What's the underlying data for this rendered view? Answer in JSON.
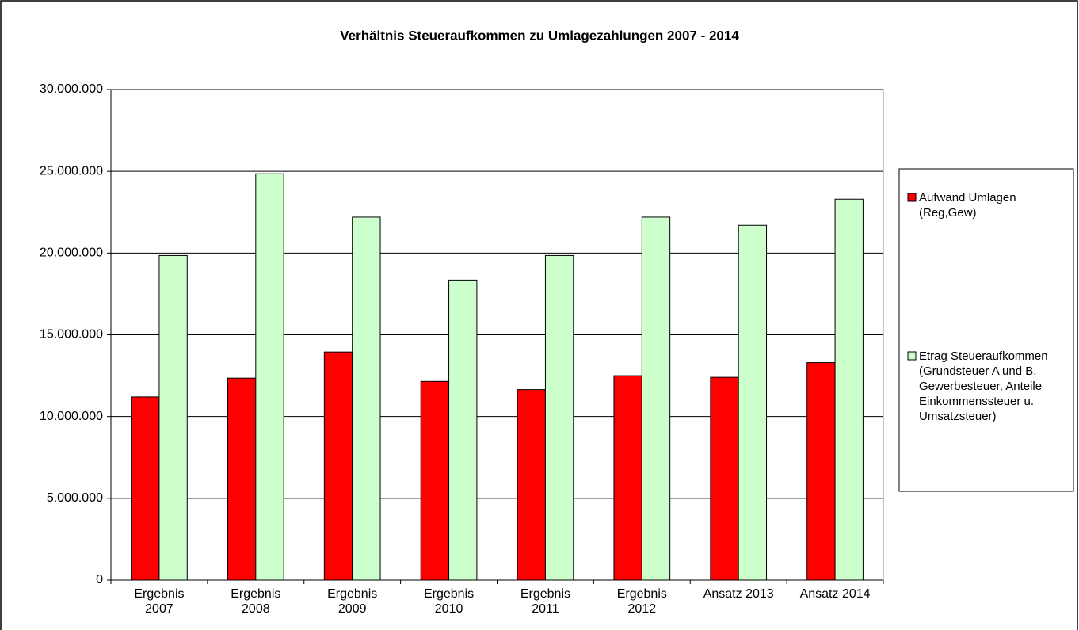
{
  "chart_data": {
    "type": "bar",
    "title": "Verhältnis Steueraufkommen zu Umlagezahlungen 2007 - 2014",
    "categories": [
      "Ergebnis\n2007",
      "Ergebnis\n2008",
      "Ergebnis\n2009",
      "Ergebnis\n2010",
      "Ergebnis\n2011",
      "Ergebnis\n2012",
      "Ansatz 2013",
      "Ansatz 2014"
    ],
    "series": [
      {
        "name": "Aufwand Umlagen (Reg,Gew)",
        "color": "#ff0000",
        "values": [
          11200000,
          12350000,
          13950000,
          12150000,
          11650000,
          12500000,
          12400000,
          13300000
        ]
      },
      {
        "name": "Etrag Steueraufkommen (Grundsteuer A und B, Gewerbesteuer, Anteile Einkommenssteuer u. Umsatzsteuer)",
        "color": "#ccffcc",
        "values": [
          19850000,
          24850000,
          22200000,
          18350000,
          19850000,
          22200000,
          21700000,
          23300000
        ]
      }
    ],
    "ylim": [
      0,
      30000000
    ],
    "yticks": [
      0,
      {
        "value": 5000000,
        "label": "5.000.000"
      },
      {
        "value": 10000000,
        "label": "10.000.000"
      },
      {
        "value": 15000000,
        "label": "15.000.000"
      },
      {
        "value": 20000000,
        "label": "20.000.000"
      },
      {
        "value": 25000000,
        "label": "25.000.000"
      },
      {
        "value": 30000000,
        "label": "30.000.000"
      }
    ],
    "grid": true,
    "legend": "right"
  }
}
